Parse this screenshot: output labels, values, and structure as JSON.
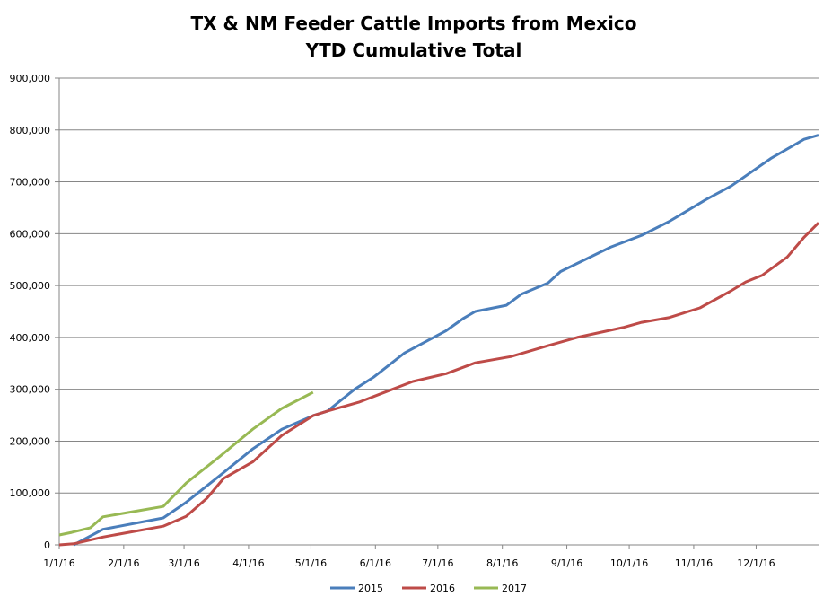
{
  "chart_data": {
    "type": "line",
    "title": "TX & NM Feeder Cattle Imports from Mexico",
    "subtitle": "YTD Cumulative Total",
    "xlabel": "",
    "ylabel": "",
    "x_unit": "day of year",
    "xlim": [
      0,
      365
    ],
    "ylim": [
      0,
      900000
    ],
    "grid": "horizontal",
    "legend_position": "bottom",
    "y_ticks": [
      {
        "value": 0,
        "label": "0"
      },
      {
        "value": 100000,
        "label": "100,000"
      },
      {
        "value": 200000,
        "label": "200,000"
      },
      {
        "value": 300000,
        "label": "300,000"
      },
      {
        "value": 400000,
        "label": "400,000"
      },
      {
        "value": 500000,
        "label": "500,000"
      },
      {
        "value": 600000,
        "label": "600,000"
      },
      {
        "value": 700000,
        "label": "700,000"
      },
      {
        "value": 800000,
        "label": "800,000"
      },
      {
        "value": 900000,
        "label": "900,000"
      }
    ],
    "x_ticks": [
      {
        "value": 0,
        "label": "1/1/16"
      },
      {
        "value": 31,
        "label": "2/1/16"
      },
      {
        "value": 60,
        "label": "3/1/16"
      },
      {
        "value": 91,
        "label": "4/1/16"
      },
      {
        "value": 121,
        "label": "5/1/16"
      },
      {
        "value": 152,
        "label": "6/1/16"
      },
      {
        "value": 182,
        "label": "7/1/16"
      },
      {
        "value": 213,
        "label": "8/1/16"
      },
      {
        "value": 244,
        "label": "9/1/16"
      },
      {
        "value": 274,
        "label": "10/1/16"
      },
      {
        "value": 305,
        "label": "11/1/16"
      },
      {
        "value": 335,
        "label": "12/1/16"
      }
    ],
    "series": [
      {
        "name": "2015",
        "color": "#4a7ebb",
        "points": [
          [
            7,
            0
          ],
          [
            21,
            30000
          ],
          [
            50,
            52000
          ],
          [
            61,
            82000
          ],
          [
            77,
            133000
          ],
          [
            93,
            185000
          ],
          [
            107,
            223000
          ],
          [
            122,
            249000
          ],
          [
            129,
            258000
          ],
          [
            142,
            300000
          ],
          [
            151,
            323000
          ],
          [
            166,
            370000
          ],
          [
            186,
            413000
          ],
          [
            194,
            436000
          ],
          [
            200,
            450000
          ],
          [
            215,
            462000
          ],
          [
            222,
            483000
          ],
          [
            235,
            505000
          ],
          [
            241,
            527000
          ],
          [
            265,
            574000
          ],
          [
            280,
            597000
          ],
          [
            293,
            623000
          ],
          [
            311,
            666000
          ],
          [
            323,
            692000
          ],
          [
            342,
            745000
          ],
          [
            358,
            782000
          ],
          [
            365,
            790000
          ]
        ]
      },
      {
        "name": "2016",
        "color": "#be4b48",
        "points": [
          [
            0,
            0
          ],
          [
            7,
            2000
          ],
          [
            21,
            15000
          ],
          [
            50,
            36000
          ],
          [
            61,
            55000
          ],
          [
            71,
            90000
          ],
          [
            79,
            128000
          ],
          [
            93,
            160000
          ],
          [
            107,
            211000
          ],
          [
            122,
            249000
          ],
          [
            129,
            258000
          ],
          [
            144,
            275000
          ],
          [
            155,
            292000
          ],
          [
            170,
            315000
          ],
          [
            186,
            330000
          ],
          [
            200,
            351000
          ],
          [
            217,
            363000
          ],
          [
            235,
            384000
          ],
          [
            249,
            400000
          ],
          [
            271,
            419000
          ],
          [
            280,
            429000
          ],
          [
            293,
            438000
          ],
          [
            308,
            457000
          ],
          [
            323,
            490000
          ],
          [
            330,
            507000
          ],
          [
            338,
            520000
          ],
          [
            350,
            555000
          ],
          [
            358,
            593000
          ],
          [
            365,
            621000
          ]
        ]
      },
      {
        "name": "2017",
        "color": "#98b954",
        "points": [
          [
            0,
            19000
          ],
          [
            6,
            24000
          ],
          [
            15,
            33000
          ],
          [
            21,
            54000
          ],
          [
            50,
            74000
          ],
          [
            61,
            119000
          ],
          [
            77,
            170000
          ],
          [
            93,
            223000
          ],
          [
            107,
            263000
          ],
          [
            122,
            294000
          ]
        ]
      }
    ]
  }
}
